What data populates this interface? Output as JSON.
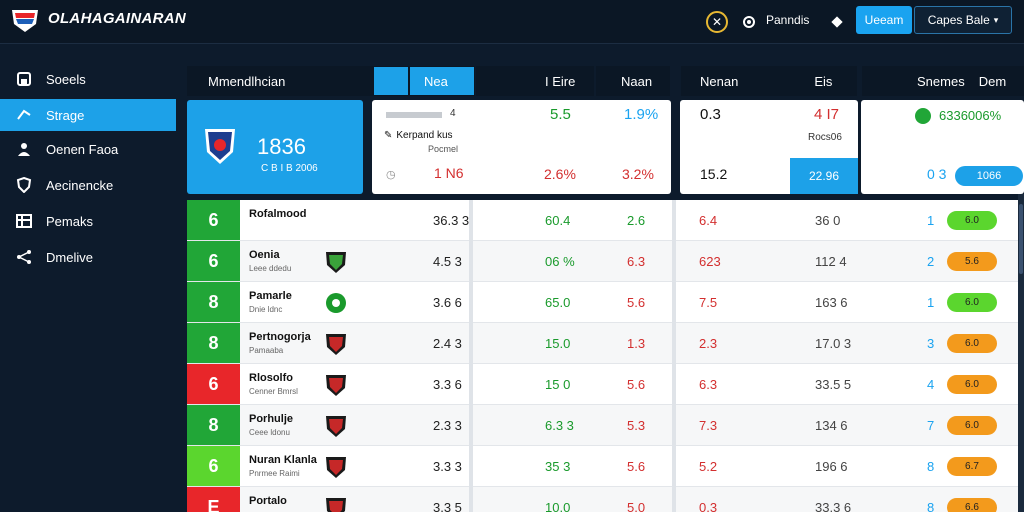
{
  "app": {
    "brand": "OLAHAGAINARAN"
  },
  "topbar": {
    "link_label": "Panndis",
    "primary_button": "Ueeam",
    "outline_button": "Capes Bale"
  },
  "sidebar": {
    "items": [
      {
        "label": "Soeels",
        "icon": "home-icon",
        "active": false
      },
      {
        "label": "Strage",
        "icon": "share-icon",
        "active": true
      },
      {
        "label": "Oenen Faoa",
        "icon": "users-icon",
        "active": false
      },
      {
        "label": "Aecinencke",
        "icon": "shield-icon",
        "active": false
      },
      {
        "label": "Pemaks",
        "icon": "table-icon",
        "active": false
      },
      {
        "label": "Dmelive",
        "icon": "share-icon",
        "active": false
      }
    ]
  },
  "headers": {
    "h1": "Mmendlhcian",
    "h2": "Nea",
    "h3": "I Eire",
    "h4": "Naan",
    "h5": "Nenan",
    "h6": "Eis",
    "h7": "Snemes",
    "h8": "Dem"
  },
  "summary": {
    "feature_value": "1836",
    "feature_sub": "C B I B 2006",
    "card1": {
      "line1": "4",
      "line2_label": "Kerpand kus",
      "line2_sub": "Pocmel",
      "bottom_value": "1 N6",
      "col2_top": "5.5",
      "col2_bottom": "2.6%",
      "col3_top": "1.9%",
      "col3_bottom": "3.2%"
    },
    "card2": {
      "top_left": "0.3",
      "top_right": "4 I7",
      "mid_right": "Rocs06",
      "bottom_left": "15.2",
      "highlight": "22.96"
    },
    "card3": {
      "top_value": "6336006%",
      "bottom_left": "0 3",
      "pill": "1066"
    }
  },
  "table": {
    "rows": [
      {
        "rank": "6",
        "rank_color": "#21a637",
        "name": "Rofalmood",
        "sub": "",
        "crest": "none",
        "v1": "36.3 3",
        "v2": "60.4",
        "v3": "2.6",
        "v4": "6.4",
        "v5": "36 0",
        "v6": "1",
        "pill": "6.0",
        "pill_color": "#5bd62e"
      },
      {
        "rank": "6",
        "rank_color": "#21a637",
        "name": "Oenia",
        "sub": "Leee ddedu",
        "crest": "shield-green",
        "v1": "4.5 3",
        "v2": "06 %",
        "v3": "6.3",
        "v4": "623",
        "v5": "112 4",
        "v6": "2",
        "pill": "5.6",
        "pill_color": "#f39a1c"
      },
      {
        "rank": "8",
        "rank_color": "#21a637",
        "name": "Pamarle",
        "sub": "Dnie ldnc",
        "crest": "circle-green",
        "v1": "3.6 6",
        "v2": "65.0",
        "v3": "5.6",
        "v4": "7.5",
        "v5": "163 6",
        "v6": "1",
        "pill": "6.0",
        "pill_color": "#5bd62e"
      },
      {
        "rank": "8",
        "rank_color": "#21a637",
        "name": "Pertnogorja",
        "sub": "Pamaaba",
        "crest": "shield-red",
        "v1": "2.4 3",
        "v2": "15.0",
        "v3": "1.3",
        "v4": "2.3",
        "v5": "17.0 3",
        "v6": "3",
        "pill": "6.0",
        "pill_color": "#f39a1c"
      },
      {
        "rank": "6",
        "rank_color": "#e8262a",
        "name": "Rlosolfo",
        "sub": "Cenner Bmrsl",
        "crest": "shield-red",
        "v1": "3.3 6",
        "v2": "15 0",
        "v3": "5.6",
        "v4": "6.3",
        "v5": "33.5 5",
        "v6": "4",
        "pill": "6.0",
        "pill_color": "#f39a1c"
      },
      {
        "rank": "8",
        "rank_color": "#21a637",
        "name": "Porhulje",
        "sub": "Ceee ldonu",
        "crest": "shield-red",
        "v1": "2.3 3",
        "v2": "6.3 3",
        "v3": "5.3",
        "v4": "7.3",
        "v5": "134 6",
        "v6": "7",
        "pill": "6.0",
        "pill_color": "#f39a1c"
      },
      {
        "rank": "6",
        "rank_color": "#5bd62e",
        "name": "Nuran Klanla",
        "sub": "Pnrmee Raimi",
        "crest": "shield-red",
        "v1": "3.3 3",
        "v2": "35 3",
        "v3": "5.6",
        "v4": "5.2",
        "v5": "196 6",
        "v6": "8",
        "pill": "6.7",
        "pill_color": "#f39a1c"
      },
      {
        "rank": "E",
        "rank_color": "#e8262a",
        "name": "Portalo",
        "sub": "",
        "crest": "shield-red",
        "v1": "3.3 5",
        "v2": "10.0",
        "v3": "5.0",
        "v4": "0.3",
        "v5": "33.3 6",
        "v6": "8",
        "pill": "6.6",
        "pill_color": "#f39a1c"
      }
    ]
  },
  "colors": {
    "accent": "#1da1e8",
    "green": "#1a9a2c",
    "red": "#d32f2f",
    "teal": "#1aa3f0"
  }
}
